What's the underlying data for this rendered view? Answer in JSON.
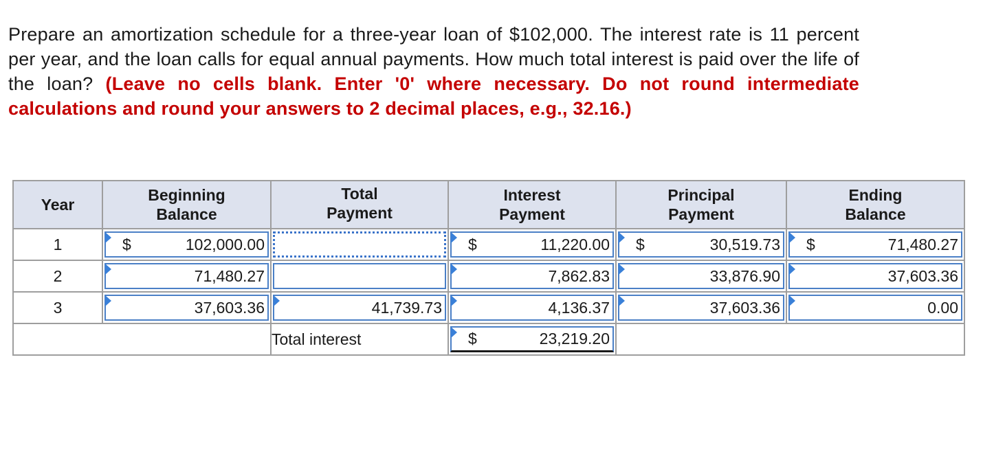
{
  "question": {
    "text": "Prepare an amortization schedule for a three-year loan of $102,000. The interest rate is 11 percent per year, and the loan calls for equal annual payments. How much total interest is paid over the life of the loan?",
    "instructions": "(Leave no cells blank. Enter '0' where necessary. Do not round intermediate calculations and round your answers to 2 decimal places, e.g., 32.16.)"
  },
  "table": {
    "headers": {
      "year": "Year",
      "beginning_balance": "Beginning Balance",
      "total_payment": "Total Payment",
      "interest_payment": "Interest Payment",
      "principal_payment": "Principal Payment",
      "ending_balance": "Ending Balance"
    },
    "currency": "$",
    "rows": [
      {
        "year": "1",
        "beginning_balance": "102,000.00",
        "total_payment": "",
        "interest_payment": "11,220.00",
        "principal_payment": "30,519.73",
        "ending_balance": "71,480.27"
      },
      {
        "year": "2",
        "beginning_balance": "71,480.27",
        "total_payment": "",
        "interest_payment": "7,862.83",
        "principal_payment": "33,876.90",
        "ending_balance": "37,603.36"
      },
      {
        "year": "3",
        "beginning_balance": "37,603.36",
        "total_payment": "41,739.73",
        "interest_payment": "4,136.37",
        "principal_payment": "37,603.36",
        "ending_balance": "0.00"
      }
    ],
    "total_interest_label": "Total interest",
    "total_interest_value": "23,219.20"
  }
}
